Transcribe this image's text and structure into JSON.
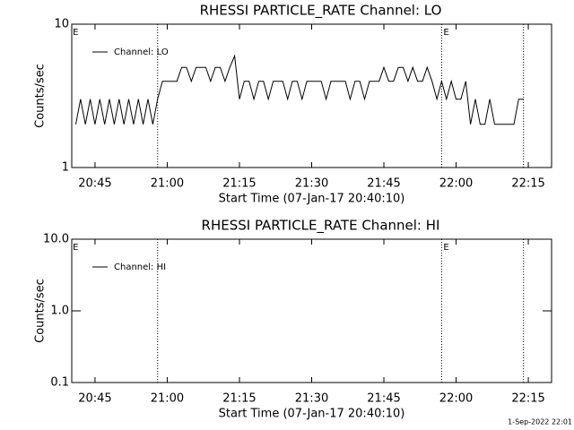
{
  "chart_data": [
    {
      "type": "line",
      "title": "RHESSI PARTICLE_RATE Channel: LO",
      "xlabel": "Start Time (07-Jan-17 20:40:10)",
      "ylabel": "Counts/sec",
      "log_y": true,
      "ylim": [
        1,
        10
      ],
      "yticks": [
        10,
        1
      ],
      "xlim": [
        "20:40:10",
        "22:19:50"
      ],
      "xticks": [
        "20:45",
        "21:00",
        "21:15",
        "21:30",
        "21:45",
        "22:00",
        "22:15"
      ],
      "vlines": [
        "20:58",
        "21:57",
        "22:14"
      ],
      "event_labels": [
        {
          "x": "20:40",
          "text": "E"
        },
        {
          "x": "21:57",
          "text": "E"
        }
      ],
      "legend": "upper left",
      "x": [
        "20:41",
        "20:42",
        "20:43",
        "20:44",
        "20:45",
        "20:46",
        "20:47",
        "20:48",
        "20:49",
        "20:50",
        "20:51",
        "20:52",
        "20:53",
        "20:54",
        "20:55",
        "20:56",
        "20:57",
        "20:58",
        "20:59",
        "21:00",
        "21:01",
        "21:02",
        "21:03",
        "21:04",
        "21:05",
        "21:06",
        "21:07",
        "21:08",
        "21:09",
        "21:10",
        "21:11",
        "21:12",
        "21:13",
        "21:14",
        "21:15",
        "21:16",
        "21:17",
        "21:18",
        "21:19",
        "21:20",
        "21:21",
        "21:22",
        "21:23",
        "21:24",
        "21:25",
        "21:26",
        "21:27",
        "21:28",
        "21:29",
        "21:30",
        "21:31",
        "21:32",
        "21:33",
        "21:34",
        "21:35",
        "21:36",
        "21:37",
        "21:38",
        "21:39",
        "21:40",
        "21:41",
        "21:42",
        "21:43",
        "21:44",
        "21:45",
        "21:46",
        "21:47",
        "21:48",
        "21:49",
        "21:50",
        "21:51",
        "21:52",
        "21:53",
        "21:54",
        "21:55",
        "21:56",
        "21:57",
        "21:58",
        "21:59",
        "22:00",
        "22:01",
        "22:02",
        "22:03",
        "22:04",
        "22:05",
        "22:06",
        "22:07",
        "22:08",
        "22:09",
        "22:10",
        "22:11",
        "22:12",
        "22:13",
        "22:14"
      ],
      "series": [
        {
          "name": "Channel: LO",
          "color": "#000000",
          "values": [
            2,
            3,
            2,
            3,
            2,
            3,
            2,
            3,
            2,
            3,
            2,
            3,
            2,
            3,
            2,
            3,
            2,
            3,
            4,
            4,
            4,
            4,
            5,
            5,
            4,
            5,
            5,
            5,
            4,
            5,
            5,
            4,
            5,
            6,
            3,
            4,
            4,
            3,
            4,
            4,
            3,
            4,
            4,
            4,
            3,
            4,
            4,
            3,
            4,
            4,
            4,
            4,
            3,
            4,
            4,
            4,
            4,
            3,
            4,
            4,
            3,
            4,
            4,
            4,
            5,
            4,
            4,
            5,
            5,
            4,
            5,
            4,
            4,
            5,
            4,
            3,
            4,
            3,
            4,
            3,
            3,
            4,
            2,
            3,
            2,
            2,
            3,
            2,
            2,
            2,
            2,
            2,
            3,
            3
          ]
        }
      ]
    },
    {
      "type": "line",
      "title": "RHESSI PARTICLE_RATE Channel: HI",
      "xlabel": "Start Time (07-Jan-17 20:40:10)",
      "ylabel": "Counts/sec",
      "log_y": true,
      "ylim": [
        0.1,
        10
      ],
      "yticks": [
        {
          "value": 10,
          "label": "10.0"
        },
        {
          "value": 1,
          "label": "1.0"
        },
        0.1
      ],
      "xlim": [
        "20:40:10",
        "22:19:50"
      ],
      "xticks": [
        "20:45",
        "21:00",
        "21:15",
        "21:30",
        "21:45",
        "22:00",
        "22:15"
      ],
      "vlines": [
        "20:58",
        "21:57",
        "22:14"
      ],
      "event_labels": [
        {
          "x": "20:40",
          "text": "E"
        },
        {
          "x": "21:57",
          "text": "E"
        }
      ],
      "legend": "upper left",
      "x": [],
      "series": [
        {
          "name": "Channel: HI",
          "color": "#000000",
          "values": []
        }
      ]
    }
  ],
  "footer": "1-Sep-2022 22:01"
}
